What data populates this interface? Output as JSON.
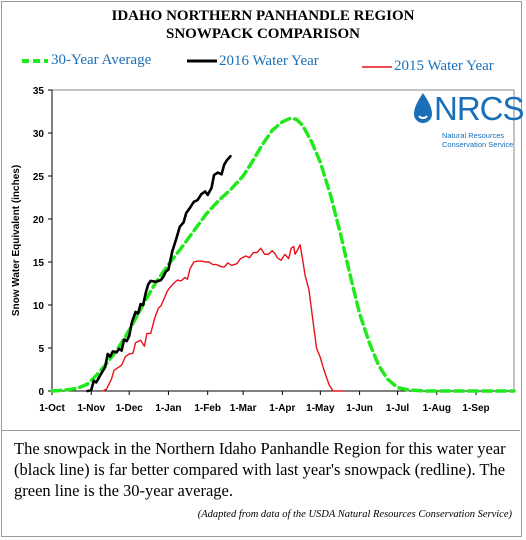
{
  "header": {
    "title_line1": "IDAHO NORTHERN PANHANDLE REGION",
    "title_line2": "SNOWPACK COMPARISON"
  },
  "legend": {
    "avg_label": "30-Year Average",
    "y2016_label": "2016 Water Year",
    "y2015_label": "2015 Water Year"
  },
  "colors": {
    "avg": "#22e81e",
    "y2016": "#000000",
    "y2015": "#e8121b",
    "brand": "#1a6fb8"
  },
  "logo": {
    "text": "NRCS",
    "subtitle_line1": "Natural Resources",
    "subtitle_line2": "Conservation Service"
  },
  "caption": {
    "text": "The snowpack in the Northern Idaho Panhandle Region for this water year (black line) is far better compared with last year's snowpack (redline).  The green line is the 30-year average.",
    "source": "(Adapted from data of the USDA Natural Resources Conservation Service)"
  },
  "chart_data": {
    "type": "line",
    "title": "IDAHO NORTHERN PANHANDLE REGION SNOWPACK COMPARISON",
    "xlabel": "",
    "ylabel": "Snow Water Equivalent (inches)",
    "x_unit": "day of water year (0 = 1-Oct)",
    "xlim": [
      0,
      365
    ],
    "ylim": [
      0,
      35
    ],
    "yticks": [
      0,
      5,
      10,
      15,
      20,
      25,
      30,
      35
    ],
    "xtick_labels": [
      "1-Oct",
      "1-Nov",
      "1-Dec",
      "1-Jan",
      "1-Feb",
      "1-Mar",
      "1-Apr",
      "1-May",
      "1-Jun",
      "1-Jul",
      "1-Aug",
      "1-Sep"
    ],
    "xtick_days": [
      0,
      31,
      61,
      92,
      123,
      151,
      182,
      212,
      243,
      273,
      304,
      335
    ],
    "grid": false,
    "legend_position": "top",
    "series": [
      {
        "name": "30-Year Average",
        "style": "dashed",
        "points": [
          [
            0,
            0
          ],
          [
            10,
            0.1
          ],
          [
            20,
            0.3
          ],
          [
            28,
            0.8
          ],
          [
            35,
            1.8
          ],
          [
            42,
            3.0
          ],
          [
            50,
            4.5
          ],
          [
            58,
            6.3
          ],
          [
            66,
            8.4
          ],
          [
            74,
            10.6
          ],
          [
            82,
            12.6
          ],
          [
            92,
            14.7
          ],
          [
            102,
            16.6
          ],
          [
            112,
            18.6
          ],
          [
            122,
            20.6
          ],
          [
            132,
            22.2
          ],
          [
            141,
            23.4
          ],
          [
            151,
            25.0
          ],
          [
            158,
            26.6
          ],
          [
            166,
            28.6
          ],
          [
            174,
            30.3
          ],
          [
            182,
            31.3
          ],
          [
            188,
            31.7
          ],
          [
            193,
            31.6
          ],
          [
            198,
            30.9
          ],
          [
            205,
            29.0
          ],
          [
            212,
            26.6
          ],
          [
            220,
            22.8
          ],
          [
            228,
            18.2
          ],
          [
            236,
            13.2
          ],
          [
            243,
            9.0
          ],
          [
            251,
            5.5
          ],
          [
            258,
            3.0
          ],
          [
            265,
            1.4
          ],
          [
            273,
            0.4
          ],
          [
            282,
            0.1
          ],
          [
            295,
            0
          ],
          [
            365,
            0
          ]
        ]
      },
      {
        "name": "2016 Water Year",
        "style": "solid",
        "points": [
          [
            28,
            0
          ],
          [
            31,
            0.1
          ],
          [
            33,
            1.2
          ],
          [
            35,
            1.0
          ],
          [
            38,
            1.8
          ],
          [
            42,
            2.8
          ],
          [
            44,
            4.3
          ],
          [
            46,
            4.0
          ],
          [
            48,
            4.6
          ],
          [
            51,
            4.5
          ],
          [
            53,
            4.9
          ],
          [
            55,
            4.7
          ],
          [
            57,
            6.0
          ],
          [
            59,
            5.8
          ],
          [
            61,
            6.4
          ],
          [
            63,
            7.9
          ],
          [
            66,
            9.2
          ],
          [
            68,
            9.0
          ],
          [
            70,
            10.1
          ],
          [
            72,
            10.0
          ],
          [
            74,
            11.4
          ],
          [
            76,
            12.4
          ],
          [
            78,
            12.8
          ],
          [
            82,
            12.7
          ],
          [
            86,
            12.9
          ],
          [
            88,
            13.3
          ],
          [
            90,
            13.9
          ],
          [
            92,
            14.1
          ],
          [
            95,
            16.2
          ],
          [
            98,
            17.6
          ],
          [
            101,
            19.1
          ],
          [
            104,
            19.6
          ],
          [
            106,
            20.7
          ],
          [
            109,
            21.3
          ],
          [
            112,
            22.0
          ],
          [
            115,
            22.2
          ],
          [
            118,
            22.9
          ],
          [
            121,
            23.2
          ],
          [
            123,
            22.8
          ],
          [
            126,
            23.6
          ],
          [
            128,
            25.1
          ],
          [
            131,
            25.4
          ],
          [
            134,
            25.2
          ],
          [
            136,
            26.3
          ],
          [
            138,
            26.8
          ],
          [
            141,
            27.3
          ]
        ]
      },
      {
        "name": "2015 Water Year",
        "style": "solid",
        "points": [
          [
            40,
            0
          ],
          [
            43,
            0.2
          ],
          [
            47,
            1.4
          ],
          [
            49,
            2.4
          ],
          [
            52,
            2.7
          ],
          [
            55,
            3.0
          ],
          [
            58,
            4.0
          ],
          [
            61,
            4.3
          ],
          [
            64,
            4.4
          ],
          [
            66,
            5.6
          ],
          [
            70,
            5.9
          ],
          [
            73,
            5.2
          ],
          [
            75,
            6.7
          ],
          [
            78,
            6.7
          ],
          [
            81,
            8.4
          ],
          [
            84,
            9.6
          ],
          [
            86,
            9.9
          ],
          [
            89,
            10.9
          ],
          [
            91,
            11.6
          ],
          [
            93,
            12.0
          ],
          [
            96,
            12.5
          ],
          [
            99,
            12.9
          ],
          [
            102,
            12.8
          ],
          [
            105,
            13.2
          ],
          [
            107,
            13.0
          ],
          [
            109,
            14.2
          ],
          [
            112,
            15.0
          ],
          [
            115,
            15.1
          ],
          [
            118,
            15.1
          ],
          [
            121,
            15.0
          ],
          [
            124,
            15.0
          ],
          [
            127,
            14.7
          ],
          [
            130,
            14.7
          ],
          [
            133,
            14.5
          ],
          [
            136,
            14.4
          ],
          [
            139,
            14.9
          ],
          [
            142,
            14.6
          ],
          [
            146,
            14.8
          ],
          [
            149,
            15.4
          ],
          [
            153,
            15.7
          ],
          [
            156,
            15.5
          ],
          [
            159,
            16.1
          ],
          [
            162,
            16.1
          ],
          [
            165,
            16.6
          ],
          [
            168,
            15.9
          ],
          [
            171,
            15.9
          ],
          [
            174,
            16.3
          ],
          [
            176,
            16.0
          ],
          [
            178,
            15.5
          ],
          [
            181,
            15.2
          ],
          [
            184,
            15.9
          ],
          [
            187,
            15.4
          ],
          [
            189,
            16.6
          ],
          [
            191,
            16.8
          ],
          [
            192,
            15.9
          ],
          [
            194,
            16.4
          ],
          [
            196,
            17.0
          ],
          [
            198,
            15.3
          ],
          [
            200,
            13.4
          ],
          [
            203,
            11.8
          ],
          [
            206,
            8.4
          ],
          [
            209,
            5.0
          ],
          [
            212,
            3.9
          ],
          [
            215,
            2.4
          ],
          [
            219,
            0.7
          ],
          [
            222,
            0
          ],
          [
            230,
            0
          ]
        ]
      }
    ]
  }
}
